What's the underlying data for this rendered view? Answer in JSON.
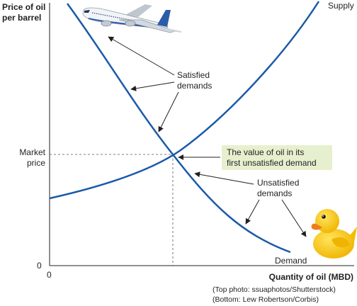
{
  "y_axis_label": [
    "Price of oil",
    "per barrel"
  ],
  "x_axis_label": "Quantity of oil (MBD)",
  "origin_x_label": "0",
  "origin_y_label": "0",
  "market_price_label": [
    "Market",
    "price"
  ],
  "supply_label": "Supply",
  "demand_label": "Demand",
  "satisfied_label": [
    "Satisfied",
    "demands"
  ],
  "unsatisfied_label": [
    "Unsatisfied",
    "demands"
  ],
  "callout_label": [
    "The value of oil in its",
    "first unsatisfied demand"
  ],
  "credits": [
    "(Top photo: ssuaphotos/Shutterstock)",
    "(Bottom: Lew Robertson/Corbis)"
  ],
  "colors": {
    "curve": "#1a5aa8",
    "callout_bg": "#e6f0cf",
    "axis": "#231f20",
    "duck": "#f5c400",
    "beak": "#f07d1a"
  },
  "icons": [
    "airplane-photo",
    "rubber-duck-photo"
  ]
}
